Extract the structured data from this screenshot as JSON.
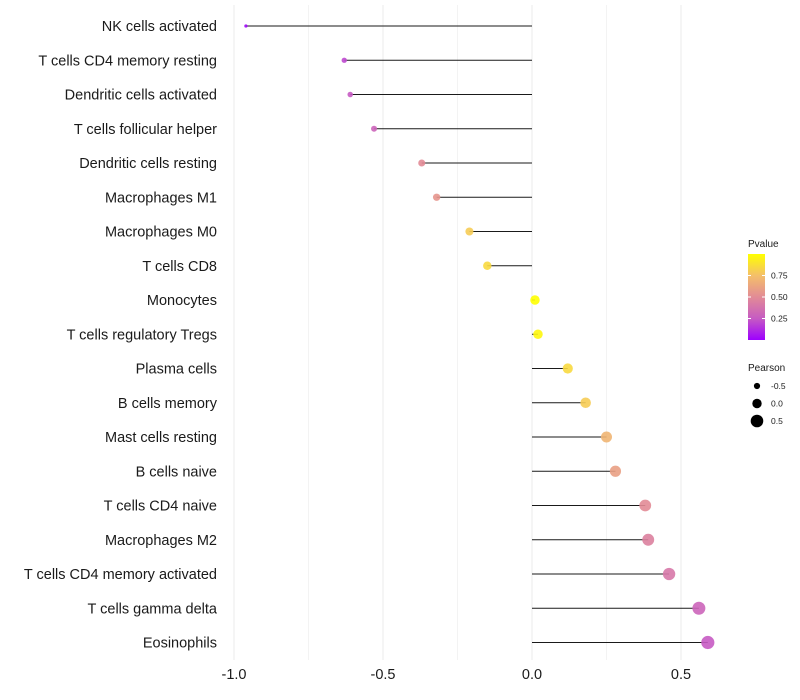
{
  "chart_data": {
    "type": "lollipop",
    "title": "",
    "xlabel": "",
    "ylabel": "",
    "xlim": [
      -1.0,
      0.6
    ],
    "x_ticks": [
      -1.0,
      -0.5,
      0.0,
      0.5
    ],
    "x_tick_labels": [
      "-1.0",
      "-0.5",
      "0.0",
      "0.5"
    ],
    "grid": "vertical",
    "categories": [
      "NK cells activated",
      "T cells CD4 memory resting",
      "Dendritic cells activated",
      "T cells follicular helper",
      "Dendritic cells resting",
      "Macrophages M1",
      "Macrophages M0",
      "T cells CD8",
      "Monocytes",
      "T cells regulatory  Tregs ",
      "Plasma cells",
      "B cells memory",
      "Mast cells resting",
      "B cells naive",
      "T cells CD4 naive",
      "Macrophages M2",
      "T cells CD4 memory activated",
      "T cells gamma delta",
      "Eosinophils"
    ],
    "pearson": [
      -0.96,
      -0.63,
      -0.61,
      -0.53,
      -0.37,
      -0.32,
      -0.21,
      -0.15,
      0.01,
      0.02,
      0.12,
      0.18,
      0.25,
      0.28,
      0.38,
      0.39,
      0.46,
      0.56,
      0.59
    ],
    "pvalue": [
      0.02,
      0.2,
      0.25,
      0.3,
      0.5,
      0.55,
      0.8,
      0.85,
      1.0,
      0.97,
      0.85,
      0.8,
      0.7,
      0.6,
      0.5,
      0.45,
      0.4,
      0.3,
      0.25
    ],
    "legend_pvalue": {
      "title": "Pvalue",
      "ticks": [
        0.25,
        0.5,
        0.75
      ],
      "tick_labels": [
        "0.25",
        "0.50",
        "0.75"
      ],
      "range": [
        0.0,
        1.0
      ],
      "colors": [
        "#9d00ff",
        "#c65bc3",
        "#e28b96",
        "#f4bf6a",
        "#ffff00"
      ]
    },
    "legend_pearson": {
      "title": "Pearson",
      "values": [
        -0.5,
        0.0,
        0.5
      ],
      "labels": [
        "-0.5",
        "0.0",
        "0.5"
      ]
    }
  }
}
